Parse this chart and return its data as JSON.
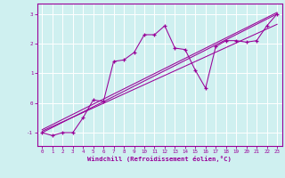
{
  "xlabel": "Windchill (Refroidissement éolien,°C)",
  "bg_color": "#cff0f0",
  "line_color": "#990099",
  "grid_color": "#ffffff",
  "axis_color": "#990099",
  "x_ticks": [
    0,
    1,
    2,
    3,
    4,
    5,
    6,
    7,
    8,
    9,
    10,
    11,
    12,
    13,
    14,
    15,
    16,
    17,
    18,
    19,
    20,
    21,
    22,
    23
  ],
  "y_ticks": [
    -1,
    0,
    1,
    2,
    3
  ],
  "xlim": [
    -0.5,
    23.5
  ],
  "ylim": [
    -1.45,
    3.35
  ],
  "series": [
    [
      0,
      -1.0
    ],
    [
      1,
      -1.1
    ],
    [
      2,
      -1.0
    ],
    [
      3,
      -1.0
    ],
    [
      4,
      -0.5
    ],
    [
      5,
      0.1
    ],
    [
      6,
      0.05
    ],
    [
      7,
      1.4
    ],
    [
      8,
      1.45
    ],
    [
      9,
      1.7
    ],
    [
      10,
      2.3
    ],
    [
      11,
      2.3
    ],
    [
      12,
      2.6
    ],
    [
      13,
      1.85
    ],
    [
      14,
      1.8
    ],
    [
      15,
      1.1
    ],
    [
      16,
      0.5
    ],
    [
      17,
      1.9
    ],
    [
      18,
      2.1
    ],
    [
      19,
      2.1
    ],
    [
      20,
      2.05
    ],
    [
      21,
      2.1
    ],
    [
      22,
      2.6
    ],
    [
      23,
      3.0
    ]
  ],
  "line2": [
    [
      0,
      -1.0
    ],
    [
      23,
      3.0
    ]
  ],
  "line3": [
    [
      0,
      -0.9
    ],
    [
      23,
      3.05
    ]
  ],
  "line4": [
    [
      0,
      -0.95
    ],
    [
      23,
      2.65
    ]
  ]
}
